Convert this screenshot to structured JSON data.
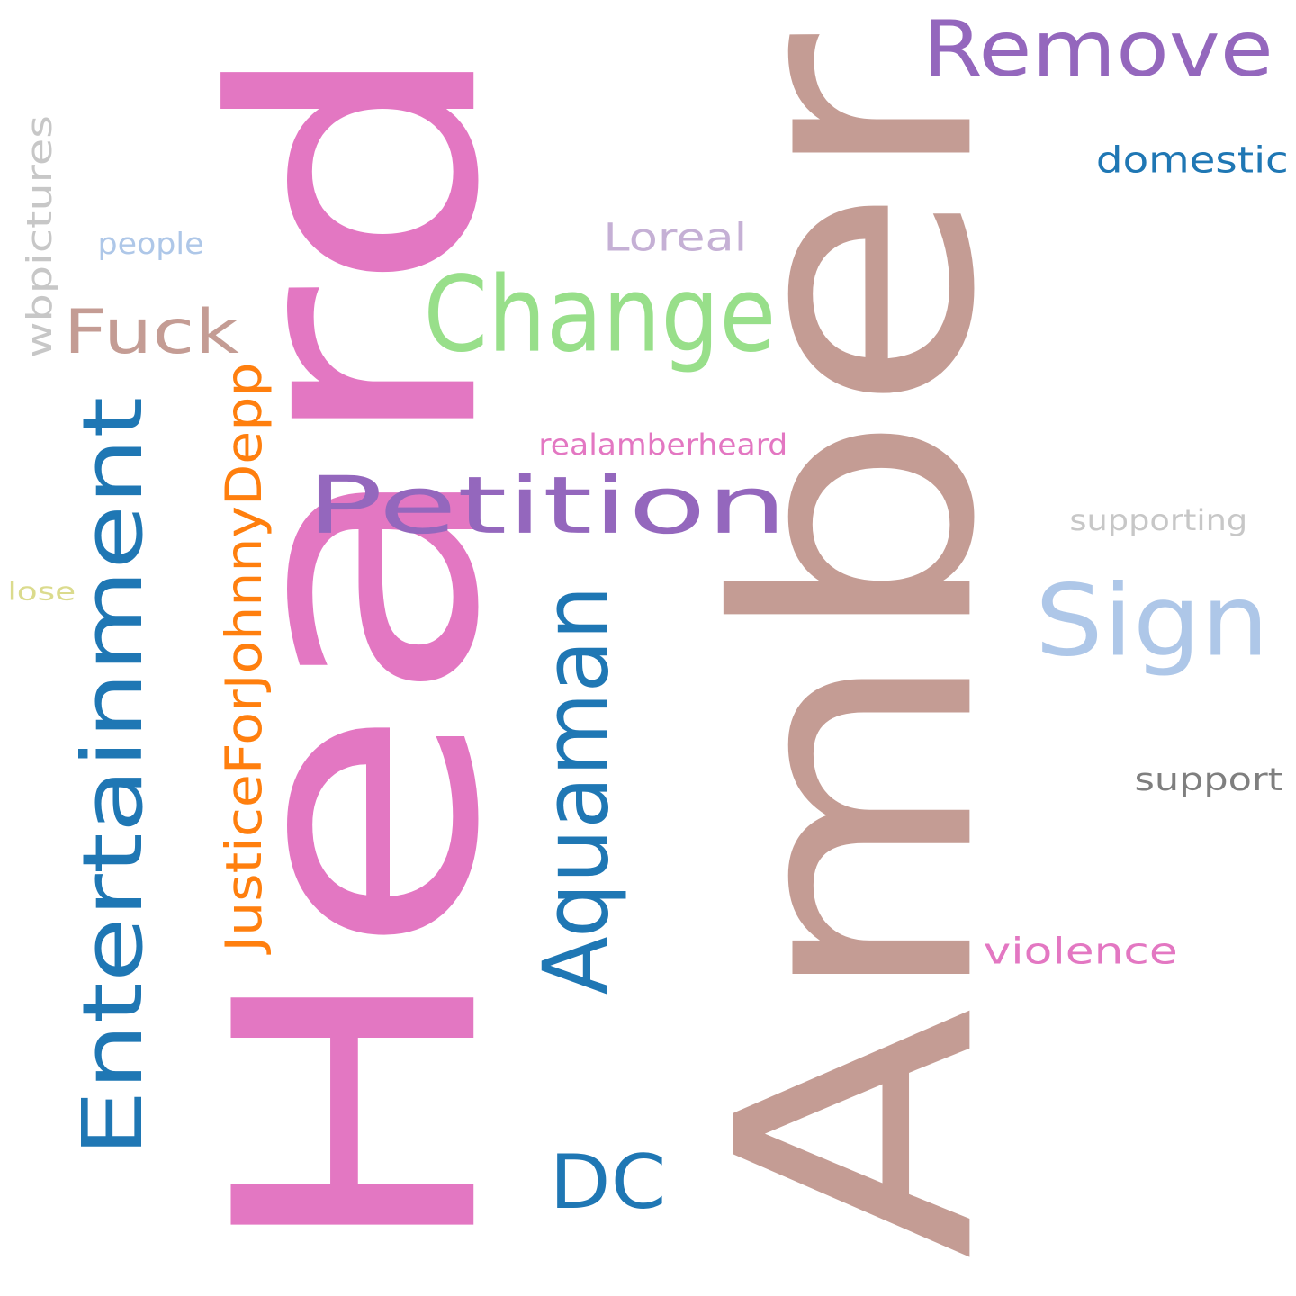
{
  "words": [
    {
      "text": "Amber",
      "color": "#c49c94",
      "orientation": "vertical"
    },
    {
      "text": "Heard",
      "color": "#e377c2",
      "orientation": "vertical"
    },
    {
      "text": "Entertainment",
      "color": "#1f77b4",
      "orientation": "vertical"
    },
    {
      "text": "Petition",
      "color": "#9467bd",
      "orientation": "horizontal"
    },
    {
      "text": "Change",
      "color": "#98df8a",
      "orientation": "horizontal"
    },
    {
      "text": "Remove",
      "color": "#9467bd",
      "orientation": "horizontal"
    },
    {
      "text": "Sign",
      "color": "#aec7e8",
      "orientation": "horizontal"
    },
    {
      "text": "Aquaman",
      "color": "#1f77b4",
      "orientation": "vertical"
    },
    {
      "text": "DC",
      "color": "#1f77b4",
      "orientation": "horizontal"
    },
    {
      "text": "Fuck",
      "color": "#c49c94",
      "orientation": "horizontal"
    },
    {
      "text": "JusticeForJohnnyDepp",
      "color": "#ff7f0e",
      "orientation": "vertical"
    },
    {
      "text": "Loreal",
      "color": "#c5b0d5",
      "orientation": "horizontal"
    },
    {
      "text": "domestic",
      "color": "#1f77b4",
      "orientation": "horizontal"
    },
    {
      "text": "wbpictures",
      "color": "#c7c7c7",
      "orientation": "vertical"
    },
    {
      "text": "realamberheard",
      "color": "#e377c2",
      "orientation": "horizontal"
    },
    {
      "text": "violence",
      "color": "#e377c2",
      "orientation": "horizontal"
    },
    {
      "text": "support",
      "color": "#7f7f7f",
      "orientation": "horizontal"
    },
    {
      "text": "supporting",
      "color": "#c7c7c7",
      "orientation": "horizontal"
    },
    {
      "text": "people",
      "color": "#aec7e8",
      "orientation": "horizontal"
    },
    {
      "text": "lose",
      "color": "#dbdb8d",
      "orientation": "horizontal"
    }
  ]
}
